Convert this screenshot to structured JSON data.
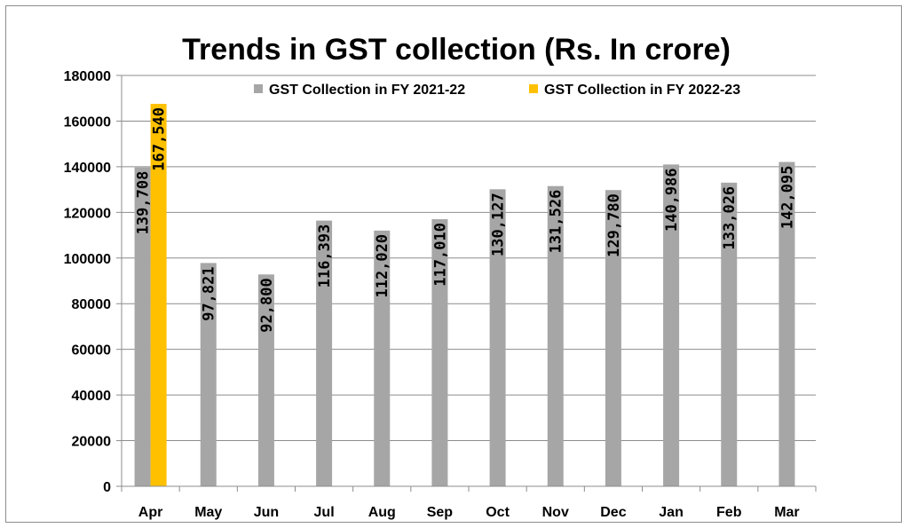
{
  "chart_data": {
    "type": "bar",
    "title": "Trends in GST collection (Rs. In crore)",
    "xlabel": "",
    "ylabel": "",
    "categories": [
      "Apr",
      "May",
      "Jun",
      "Jul",
      "Aug",
      "Sep",
      "Oct",
      "Nov",
      "Dec",
      "Jan",
      "Feb",
      "Mar"
    ],
    "ylim": [
      0,
      180000
    ],
    "yticks": [
      0,
      20000,
      40000,
      60000,
      80000,
      100000,
      120000,
      140000,
      160000,
      180000
    ],
    "grid": true,
    "legend_position": "top",
    "series": [
      {
        "name": "GST Collection in FY 2021-22",
        "color": "#a6a6a6",
        "values": [
          139708,
          97821,
          92800,
          116393,
          112020,
          117010,
          130127,
          131526,
          129780,
          140986,
          133026,
          142095
        ],
        "labels": [
          "139,708",
          "97,821",
          "92,800",
          "116,393",
          "112,020",
          "117,010",
          "130,127",
          "131,526",
          "129,780",
          "140,986",
          "133,026",
          "142,095"
        ]
      },
      {
        "name": "GST Collection in FY 2022-23",
        "color": "#ffc000",
        "values": [
          167540,
          null,
          null,
          null,
          null,
          null,
          null,
          null,
          null,
          null,
          null,
          null
        ],
        "labels": [
          "167,540",
          "",
          "",
          "",
          "",
          "",
          "",
          "",
          "",
          "",
          "",
          ""
        ]
      }
    ]
  }
}
